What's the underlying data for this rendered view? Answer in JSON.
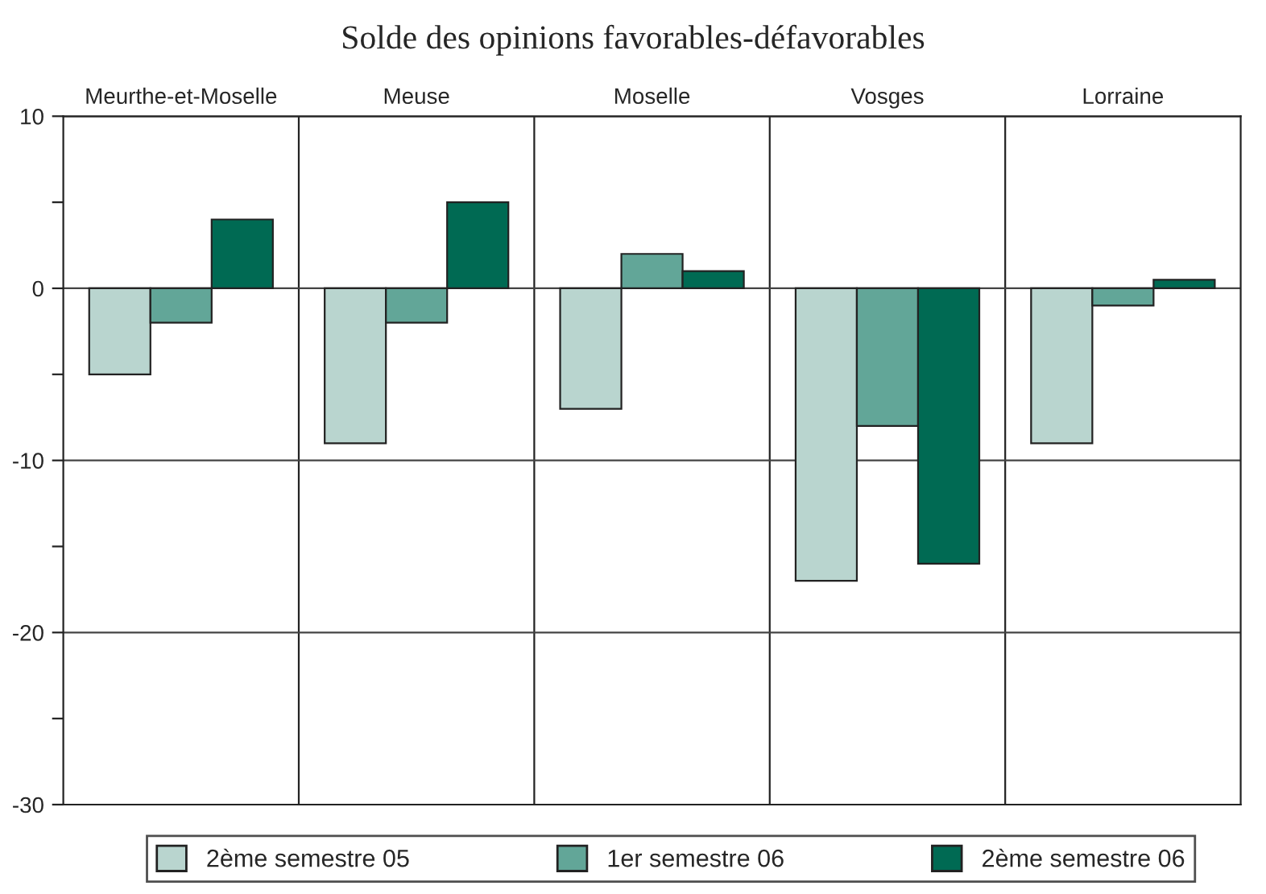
{
  "chart_data": {
    "type": "bar",
    "title": "Solde des opinions favorables-défavorables",
    "categories": [
      "Meurthe-et-Moselle",
      "Meuse",
      "Moselle",
      "Vosges",
      "Lorraine"
    ],
    "series": [
      {
        "name": "2ème semestre 05",
        "color": "#b9d5cf",
        "values": [
          -5,
          -9,
          -7,
          -17,
          -9
        ]
      },
      {
        "name": "1er semestre 06",
        "color": "#62a698",
        "values": [
          -2,
          -2,
          2,
          -8,
          -1
        ]
      },
      {
        "name": "2ème semestre 06",
        "color": "#006a53",
        "values": [
          4,
          5,
          1,
          -16,
          0.5
        ]
      }
    ],
    "ylim": [
      -30,
      10
    ],
    "yticks": [
      -30,
      {
        "value": -25,
        "label": null
      },
      -20,
      {
        "value": -15,
        "label": null
      },
      -10,
      {
        "value": -5,
        "label": null
      },
      0,
      {
        "value": 5,
        "label": null
      },
      10
    ],
    "grid": "y",
    "legend": "bottom"
  }
}
